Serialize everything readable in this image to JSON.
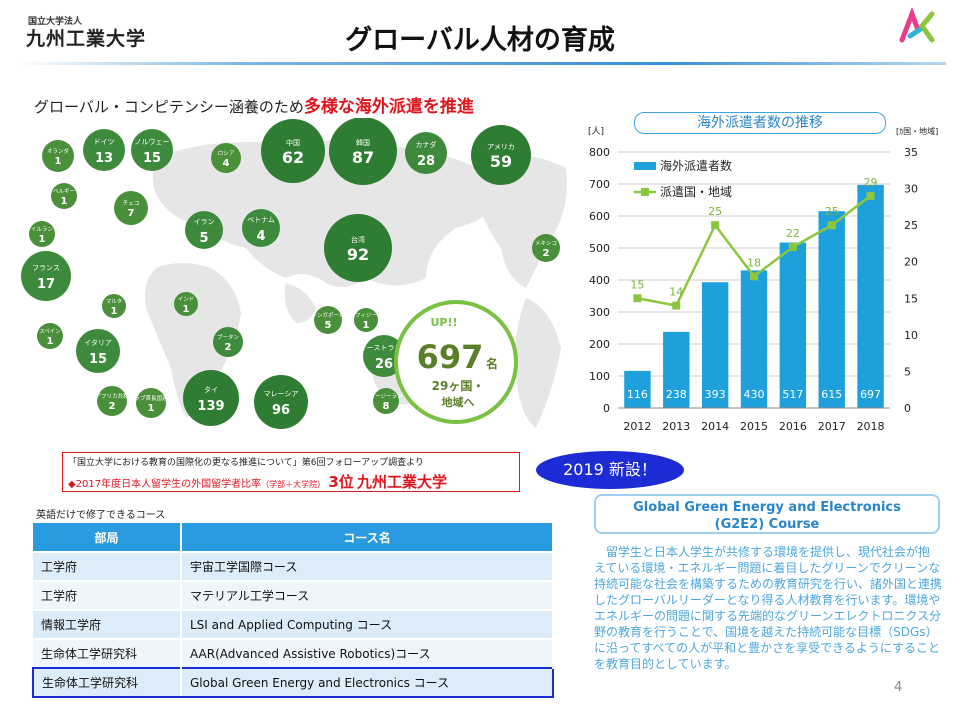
{
  "header": {
    "org": "国立大学法人",
    "university": "九州工業大学",
    "title": "グローバル人材の育成"
  },
  "headline": {
    "prefix": "グローバル・コンピテンシー涵養のため",
    "emphasis": "多様な海外派遣を推進"
  },
  "map": {
    "bubbles": [
      {
        "name": "オランダ",
        "value": "1"
      },
      {
        "name": "ドイツ",
        "value": "13"
      },
      {
        "name": "ノルウェー",
        "value": "15"
      },
      {
        "name": "ロシア",
        "value": "4"
      },
      {
        "name": "中国",
        "value": "62"
      },
      {
        "name": "韓国",
        "value": "87"
      },
      {
        "name": "カナダ",
        "value": "28"
      },
      {
        "name": "アメリカ",
        "value": "59"
      },
      {
        "name": "ベルギー",
        "value": "1"
      },
      {
        "name": "アイルランド",
        "value": "1"
      },
      {
        "name": "チェコ",
        "value": "7"
      },
      {
        "name": "イラン",
        "value": "5"
      },
      {
        "name": "ベトナム",
        "value": "4"
      },
      {
        "name": "台湾",
        "value": "92"
      },
      {
        "name": "メキシコ",
        "value": "2"
      },
      {
        "name": "フランス",
        "value": "17"
      },
      {
        "name": "マルタ",
        "value": "1"
      },
      {
        "name": "インド",
        "value": "1"
      },
      {
        "name": "シンガポール",
        "value": "5"
      },
      {
        "name": "フィジー",
        "value": "1"
      },
      {
        "name": "スペイン",
        "value": "1"
      },
      {
        "name": "ブータン",
        "value": "2"
      },
      {
        "name": "イタリア",
        "value": "15"
      },
      {
        "name": "オーストラリア",
        "value": "26"
      },
      {
        "name": "南アフリカ共和国",
        "value": "2"
      },
      {
        "name": "アラブ首長国連邦",
        "value": "1"
      },
      {
        "name": "タイ",
        "value": "139"
      },
      {
        "name": "マレーシア",
        "value": "96"
      },
      {
        "name": "ニュージーランド",
        "value": "8"
      }
    ],
    "total": {
      "up": "UP!!",
      "number": "697",
      "unit": "名",
      "countries": "29ヶ国・",
      "regions": "地域へ"
    }
  },
  "source": {
    "line1": "「国立大学における教育の国際化の更なる推進について」第6回フォローアップ調査より",
    "line2_prefix": "◆2017年度日本人留学生の外国留学者比率",
    "line2_note": "（学部＋大学院）",
    "rank": "3位",
    "university": "九州工業大学"
  },
  "new_badge": "2019 新設！",
  "courses": {
    "caption": "英語だけで修了できるコース",
    "headers": [
      "部局",
      "コース名"
    ],
    "rows": [
      [
        "工学府",
        "宇宙工学国際コース"
      ],
      [
        "工学府",
        "マテリアル工学コース"
      ],
      [
        "情報工学府",
        "LSI and Applied Computing  コース"
      ],
      [
        "生命体工学研究科",
        "AAR(Advanced Assistive Robotics)コース"
      ],
      [
        "生命体工学研究科",
        "Global Green Energy and Electronics  コース"
      ]
    ]
  },
  "g2e2": {
    "title_line1": "Global Green Energy and Electronics",
    "title_line2": "(G2E2) Course",
    "description": "留学生と日本人学生が共修する環境を提供し、現代社会が抱えている環境・エネルギー問題に着目したグリーンでクリーンな持続可能な社会を構築するための教育研究を行い、諸外国と連携したグローバルリーダーとなり得る人材教育を行います。環境やエネルギーの問題に関する先端的なグリーンエレクトロニクス分野の教育を行うことで、国境を越えた持続可能な目標（SDGs）に沿ってすべての人が平和と豊かさを享受できるようにすることを教育目的としています。"
  },
  "page_number": "4",
  "chart_data": {
    "type": "bar",
    "title": "海外派遣者数の推移",
    "categories": [
      "2012",
      "2013",
      "2014",
      "2015",
      "2016",
      "2017",
      "2018"
    ],
    "series": [
      {
        "name": "海外派遣者数",
        "kind": "bar",
        "axis": "left",
        "color": "#1ea0dc",
        "values": [
          116,
          238,
          393,
          430,
          517,
          615,
          697
        ]
      },
      {
        "name": "派遣国・地域",
        "kind": "line",
        "axis": "right",
        "color": "#8cc63f",
        "values": [
          15,
          14,
          25,
          18,
          22,
          25,
          29
        ]
      }
    ],
    "ylabel_left": "[人]",
    "ylabel_right": "[ｶ国・地域]",
    "ylim_left": [
      0,
      800
    ],
    "ylim_right": [
      0,
      35
    ],
    "yticks_left": [
      "0",
      "100",
      "200",
      "300",
      "400",
      "500",
      "600",
      "700",
      "800"
    ],
    "yticks_right": [
      "0",
      "5",
      "10",
      "15",
      "20",
      "25",
      "30",
      "35"
    ],
    "grid": true,
    "legend": "top-left"
  }
}
